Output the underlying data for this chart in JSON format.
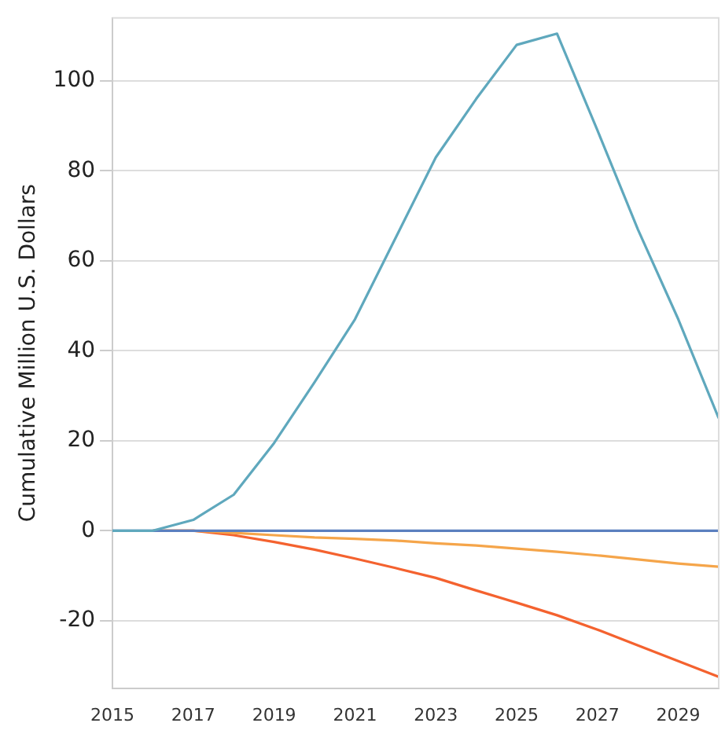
{
  "chart_data": {
    "type": "line",
    "ylabel": "Cumulative Million U.S. Dollars",
    "x": [
      2015,
      2016,
      2017,
      2018,
      2019,
      2020,
      2021,
      2022,
      2023,
      2024,
      2025,
      2026,
      2027,
      2028,
      2029,
      2030
    ],
    "series": [
      {
        "color": "#5fa8bd",
        "values": [
          0,
          0,
          2.4,
          8,
          19.5,
          33,
          47,
          65,
          83,
          96,
          108,
          110.5,
          89,
          67,
          47,
          25
        ]
      },
      {
        "color": "#5b7fbf",
        "values": [
          0,
          0,
          0,
          0,
          0,
          0,
          0,
          0,
          0,
          0,
          0,
          0,
          0,
          0,
          0,
          0
        ]
      },
      {
        "color": "#f5a54a",
        "values": [
          null,
          0,
          0,
          -0.5,
          -1,
          -1.5,
          -1.8,
          -2.2,
          -2.8,
          -3.3,
          -4,
          -4.7,
          -5.5,
          -6.4,
          -7.3,
          -8
        ]
      },
      {
        "color": "#f4622f",
        "values": [
          null,
          0,
          0,
          -1,
          -2.5,
          -4.2,
          -6.2,
          -8.3,
          -10.5,
          -13.3,
          -16,
          -18.8,
          -22,
          -25.5,
          -29,
          -32.5
        ]
      }
    ],
    "xlim": [
      2015,
      2030
    ],
    "xticks": [
      2015,
      2017,
      2019,
      2021,
      2023,
      2025,
      2027,
      2029
    ],
    "ylim": [
      -35,
      114
    ],
    "yticks": [
      -20,
      0,
      20,
      40,
      60,
      80,
      100
    ],
    "grid": "y",
    "legend": false,
    "marker": "none",
    "line_style": "solid"
  }
}
